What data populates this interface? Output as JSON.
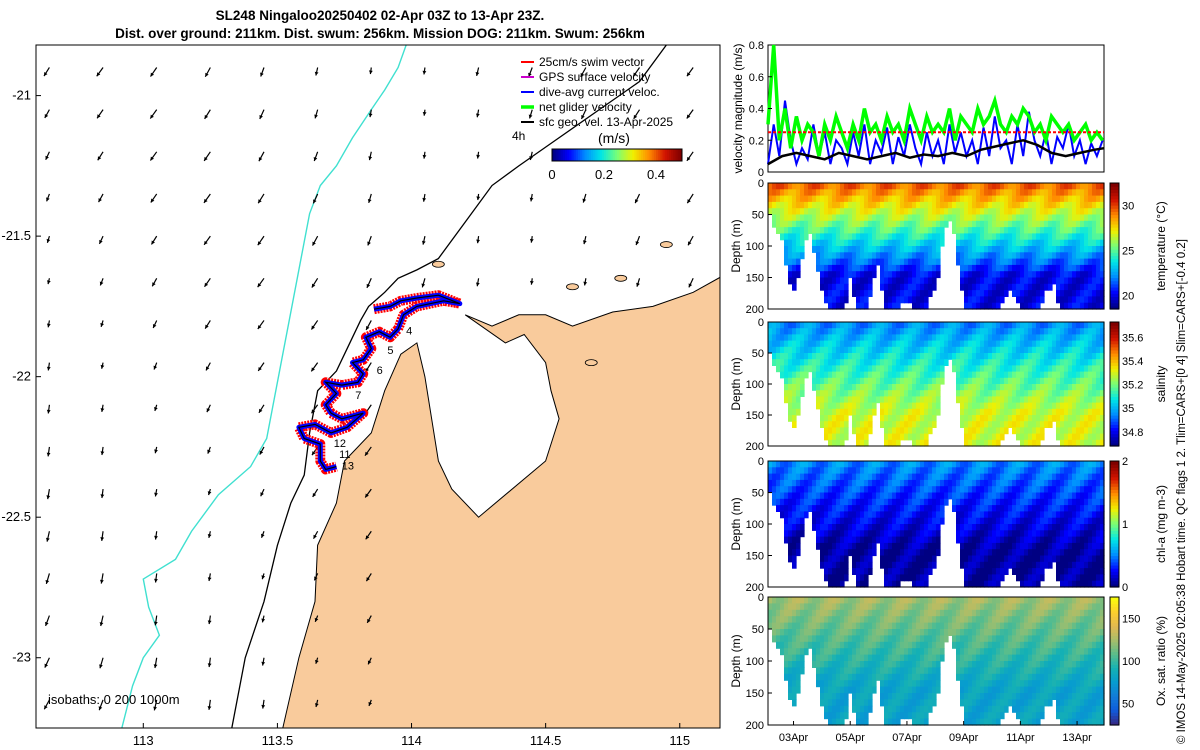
{
  "header": {
    "title_line1": "SL248 Ningaloo20250402 02-Apr 03Z to 13-Apr 23Z.",
    "title_line2": "Dist. over ground: 211km. Dist. swum: 256km. Mission DOG: 211km. Swum: 256km"
  },
  "sidebar": {
    "text": "© IMOS 14-May-2025 02:05:38 Hobart time. QC flags 1  2. Tlim=CARS+[0 4] Slim=CARS+[-0.4 0.2]"
  },
  "colors": {
    "land": "#f9cb9c",
    "coast_line": "#000000",
    "isobath_1000": "#40e0d0",
    "swim_vector": "#ff0000",
    "gps_velocity": "#cc00cc",
    "dive_avg": "#0000ff",
    "net_glider": "#00ff00",
    "sfc_geo": "#000000"
  },
  "chart_data": [
    {
      "type": "map",
      "name": "glider-track-map",
      "xlim": [
        112.6,
        115.15
      ],
      "ylim": [
        -23.25,
        -20.82
      ],
      "x_ticks": [
        113,
        113.5,
        114,
        114.5,
        115
      ],
      "x_tick_labels": [
        "113",
        "113.5",
        "114",
        "114.5",
        "115"
      ],
      "y_ticks": [
        -21,
        -21.5,
        -22,
        -22.5,
        -23
      ],
      "y_tick_labels": [
        "-21",
        "-21.5",
        "-22",
        "-22.5",
        "-23"
      ],
      "legend": {
        "placement": "top-right",
        "items": [
          {
            "label": "25cm/s swim vector",
            "color": "#ff0000"
          },
          {
            "label": "GPS surface velocity",
            "color": "#cc00cc"
          },
          {
            "label": "dive-avg current veloc.",
            "color": "#0000ff"
          },
          {
            "label": "net glider velocity",
            "color": "#00ff00"
          },
          {
            "label": "sfc geo. vel. 13-Apr-2025",
            "color": "#000000"
          }
        ]
      },
      "colorbar": {
        "label": "(m/s)",
        "ticks": [
          0,
          0.2,
          0.4
        ],
        "tick_labels": [
          "0",
          "0.2",
          "0.4"
        ],
        "range": [
          0,
          0.5
        ]
      },
      "hours_label": "4h",
      "isobath_label": "isobaths: 0   200  1000m",
      "track": [
        [
          113.86,
          -21.76
        ],
        [
          113.92,
          -21.75
        ],
        [
          113.96,
          -21.73
        ],
        [
          114.02,
          -21.72
        ],
        [
          114.1,
          -21.71
        ],
        [
          114.18,
          -21.74
        ],
        [
          114.12,
          -21.73
        ],
        [
          114.02,
          -21.75
        ],
        [
          113.97,
          -21.78
        ],
        [
          113.95,
          -21.83
        ],
        [
          113.92,
          -21.86
        ],
        [
          113.88,
          -21.84
        ],
        [
          113.83,
          -21.86
        ],
        [
          113.85,
          -21.9
        ],
        [
          113.82,
          -21.94
        ],
        [
          113.78,
          -21.95
        ],
        [
          113.82,
          -21.99
        ],
        [
          113.8,
          -22.02
        ],
        [
          113.74,
          -22.03
        ],
        [
          113.68,
          -22.02
        ],
        [
          113.72,
          -22.06
        ],
        [
          113.68,
          -22.1
        ],
        [
          113.7,
          -22.13
        ],
        [
          113.74,
          -22.15
        ],
        [
          113.82,
          -22.13
        ],
        [
          113.76,
          -22.18
        ],
        [
          113.7,
          -22.2
        ],
        [
          113.64,
          -22.17
        ],
        [
          113.58,
          -22.18
        ],
        [
          113.6,
          -22.22
        ],
        [
          113.66,
          -22.24
        ],
        [
          113.66,
          -22.3
        ],
        [
          113.68,
          -22.33
        ],
        [
          113.72,
          -22.32
        ]
      ],
      "track_labels": [
        {
          "text": "4",
          "lon": 113.98,
          "lat": -21.85
        },
        {
          "text": "5",
          "lon": 113.91,
          "lat": -21.92
        },
        {
          "text": "6",
          "lon": 113.87,
          "lat": -21.99
        },
        {
          "text": "7",
          "lon": 113.79,
          "lat": -22.08
        },
        {
          "text": "11",
          "lon": 113.73,
          "lat": -22.29
        },
        {
          "text": "12",
          "lon": 113.71,
          "lat": -22.25
        },
        {
          "text": "13",
          "lon": 113.74,
          "lat": -22.33
        }
      ]
    },
    {
      "type": "line",
      "name": "velocity-magnitude",
      "ylabel": "velocity magnitude (m/s)",
      "ylim": [
        0,
        0.8
      ],
      "y_ticks": [
        0,
        0.2,
        0.4,
        0.6,
        0.8
      ],
      "xlim": [
        2.1,
        13.95
      ],
      "series": [
        {
          "name": "dive-avg current veloc.",
          "color": "#0000ff",
          "x": [
            2.1,
            2.3,
            2.5,
            2.7,
            2.9,
            3.1,
            3.3,
            3.5,
            3.7,
            3.9,
            4.1,
            4.3,
            4.5,
            4.7,
            4.9,
            5.1,
            5.3,
            5.5,
            5.7,
            5.9,
            6.1,
            6.3,
            6.5,
            6.7,
            6.9,
            7.1,
            7.3,
            7.5,
            7.7,
            7.9,
            8.1,
            8.3,
            8.5,
            8.7,
            8.9,
            9.1,
            9.3,
            9.5,
            9.7,
            9.9,
            10.1,
            10.3,
            10.5,
            10.7,
            10.9,
            11.1,
            11.3,
            11.5,
            11.7,
            11.9,
            12.1,
            12.3,
            12.5,
            12.7,
            12.9,
            13.1,
            13.3,
            13.5,
            13.7,
            13.9
          ],
          "values": [
            0.05,
            0.3,
            0.1,
            0.45,
            0.2,
            0.05,
            0.15,
            0.08,
            0.3,
            0.1,
            0.25,
            0.05,
            0.2,
            0.15,
            0.05,
            0.25,
            0.1,
            0.3,
            0.05,
            0.2,
            0.12,
            0.28,
            0.05,
            0.22,
            0.1,
            0.3,
            0.15,
            0.05,
            0.25,
            0.1,
            0.2,
            0.05,
            0.3,
            0.12,
            0.25,
            0.1,
            0.2,
            0.05,
            0.28,
            0.1,
            0.35,
            0.15,
            0.2,
            0.05,
            0.3,
            0.1,
            0.38,
            0.2,
            0.1,
            0.25,
            0.05,
            0.22,
            0.15,
            0.3,
            0.1,
            0.2,
            0.05,
            0.18,
            0.1,
            0.2
          ]
        },
        {
          "name": "net glider velocity",
          "color": "#00ff00",
          "x": [
            2.1,
            2.3,
            2.5,
            2.7,
            2.9,
            3.1,
            3.3,
            3.5,
            3.7,
            3.9,
            4.1,
            4.3,
            4.5,
            4.7,
            4.9,
            5.1,
            5.3,
            5.5,
            5.7,
            5.9,
            6.1,
            6.3,
            6.5,
            6.7,
            6.9,
            7.1,
            7.3,
            7.5,
            7.7,
            7.9,
            8.1,
            8.3,
            8.5,
            8.7,
            8.9,
            9.1,
            9.3,
            9.5,
            9.7,
            9.9,
            10.1,
            10.3,
            10.5,
            10.7,
            10.9,
            11.1,
            11.3,
            11.5,
            11.7,
            11.9,
            12.1,
            12.3,
            12.5,
            12.7,
            12.9,
            13.1,
            13.3,
            13.5,
            13.7,
            13.9
          ],
          "values": [
            0.3,
            0.8,
            0.2,
            0.4,
            0.15,
            0.35,
            0.2,
            0.3,
            0.25,
            0.1,
            0.3,
            0.2,
            0.35,
            0.25,
            0.15,
            0.3,
            0.2,
            0.4,
            0.25,
            0.3,
            0.2,
            0.35,
            0.25,
            0.3,
            0.2,
            0.4,
            0.3,
            0.2,
            0.35,
            0.25,
            0.3,
            0.25,
            0.4,
            0.2,
            0.35,
            0.3,
            0.25,
            0.4,
            0.3,
            0.35,
            0.45,
            0.3,
            0.25,
            0.35,
            0.3,
            0.4,
            0.35,
            0.25,
            0.3,
            0.2,
            0.35,
            0.3,
            0.25,
            0.3,
            0.2,
            0.25,
            0.3,
            0.2,
            0.25,
            0.2
          ]
        },
        {
          "name": "25cm/s swim vector",
          "color": "#ff0000",
          "x": [
            2.1,
            13.95
          ],
          "values": [
            0.25,
            0.25
          ]
        },
        {
          "name": "sfc geo. vel.",
          "color": "#000000",
          "x": [
            2.1,
            2.6,
            3.1,
            3.6,
            4.1,
            4.6,
            5.1,
            5.6,
            6.1,
            6.6,
            7.1,
            7.6,
            8.1,
            8.6,
            9.1,
            9.6,
            10.1,
            10.6,
            11.1,
            11.6,
            12.1,
            12.6,
            13.1,
            13.6,
            13.95
          ],
          "values": [
            0.05,
            0.1,
            0.12,
            0.1,
            0.08,
            0.12,
            0.1,
            0.08,
            0.1,
            0.12,
            0.09,
            0.11,
            0.1,
            0.12,
            0.1,
            0.14,
            0.16,
            0.18,
            0.2,
            0.17,
            0.12,
            0.1,
            0.12,
            0.14,
            0.15
          ]
        }
      ]
    },
    {
      "type": "heatmap",
      "name": "temperature-section",
      "ylabel": "Depth (m)",
      "ylim": [
        200,
        0
      ],
      "y_ticks": [
        0,
        50,
        100,
        150,
        200
      ],
      "colorbar_label": "temperature (°C)",
      "clim": [
        18.5,
        32.5
      ],
      "colorbar_ticks": [
        20,
        25,
        30
      ],
      "colorbar_tick_labels": [
        "20",
        "25",
        "30"
      ],
      "surface_value": 29.5,
      "deep_value": 20
    },
    {
      "type": "heatmap",
      "name": "salinity-section",
      "ylabel": "Depth (m)",
      "ylim": [
        200,
        0
      ],
      "y_ticks": [
        0,
        50,
        100,
        150,
        200
      ],
      "colorbar_label": "salinity",
      "clim": [
        34.68,
        35.73
      ],
      "colorbar_ticks": [
        34.8,
        35,
        35.2,
        35.4,
        35.6
      ],
      "colorbar_tick_labels": [
        "34.8",
        "35",
        "35.2",
        "35.4",
        "35.6"
      ],
      "surface_value": 34.95,
      "deep_value": 35.3
    },
    {
      "type": "heatmap",
      "name": "chlorophyll-section",
      "ylabel": "Depth (m)",
      "ylim": [
        200,
        0
      ],
      "y_ticks": [
        0,
        50,
        100,
        150,
        200
      ],
      "colorbar_label": "chl-a (mg m-3)",
      "clim": [
        0,
        2
      ],
      "colorbar_ticks": [
        0,
        1,
        2
      ],
      "colorbar_tick_labels": [
        "0",
        "1",
        "2"
      ],
      "surface_value": 0.5,
      "deep_value": 0.05
    },
    {
      "type": "heatmap",
      "name": "oxygen-section",
      "ylabel": "Depth (m)",
      "ylim": [
        200,
        0
      ],
      "y_ticks": [
        0,
        50,
        100,
        150,
        200
      ],
      "colorbar_label": "Ox. sat. ratio (%)",
      "clim": [
        25,
        175
      ],
      "colorbar_ticks": [
        50,
        100,
        150
      ],
      "colorbar_tick_labels": [
        "50",
        "100",
        "150"
      ],
      "surface_value": 125,
      "deep_value": 80
    }
  ],
  "time_axis": {
    "xlim": [
      2.1,
      13.95
    ],
    "ticks": [
      3,
      5,
      7,
      9,
      11,
      13
    ],
    "tick_labels": [
      "03Apr",
      "05Apr",
      "07Apr",
      "09Apr",
      "11Apr",
      "13Apr"
    ],
    "dive_depths": [
      [
        2.1,
        40
      ],
      [
        2.4,
        70
      ],
      [
        2.6,
        90
      ],
      [
        2.8,
        140
      ],
      [
        3.0,
        170
      ],
      [
        3.2,
        140
      ],
      [
        3.4,
        90
      ],
      [
        3.6,
        70
      ],
      [
        3.8,
        120
      ],
      [
        4.1,
        180
      ],
      [
        4.4,
        200
      ],
      [
        4.6,
        200
      ],
      [
        4.8,
        200
      ],
      [
        5.0,
        140
      ],
      [
        5.2,
        200
      ],
      [
        5.4,
        200
      ],
      [
        5.6,
        200
      ],
      [
        5.8,
        150
      ],
      [
        6.0,
        120
      ],
      [
        6.2,
        200
      ],
      [
        6.5,
        200
      ],
      [
        6.8,
        190
      ],
      [
        7.0,
        180
      ],
      [
        7.3,
        200
      ],
      [
        7.6,
        200
      ],
      [
        7.9,
        170
      ],
      [
        8.1,
        140
      ],
      [
        8.3,
        80
      ],
      [
        8.5,
        50
      ],
      [
        8.7,
        80
      ],
      [
        8.9,
        160
      ],
      [
        9.1,
        200
      ],
      [
        9.4,
        200
      ],
      [
        9.8,
        200
      ],
      [
        10.1,
        200
      ],
      [
        10.4,
        180
      ],
      [
        10.7,
        160
      ],
      [
        11.0,
        200
      ],
      [
        11.3,
        200
      ],
      [
        11.6,
        200
      ],
      [
        11.9,
        170
      ],
      [
        12.2,
        150
      ],
      [
        12.4,
        200
      ],
      [
        12.7,
        200
      ],
      [
        13.0,
        200
      ],
      [
        13.3,
        200
      ],
      [
        13.6,
        200
      ],
      [
        13.95,
        200
      ]
    ]
  }
}
